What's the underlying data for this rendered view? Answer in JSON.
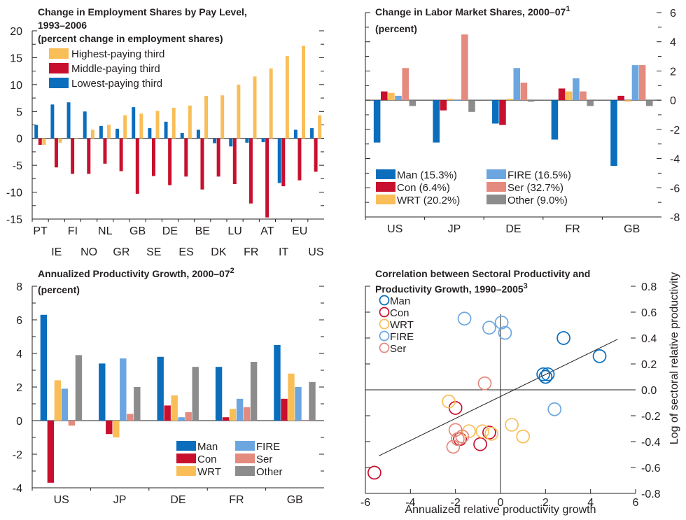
{
  "colors": {
    "high": "#F9BE58",
    "mid": "#C8102E",
    "low": "#0A6EBD",
    "Man": "#0A6EBD",
    "Con": "#C8102E",
    "WRT": "#F9BE58",
    "FIRE": "#6CA6E0",
    "Ser": "#E48A7E",
    "Other": "#8C8C8C"
  },
  "chart_data": [
    {
      "type": "bar",
      "title": "Change in Employment Shares by Pay Level, 1993–2006",
      "title_lines": [
        "Change in Employment Shares by Pay Level,",
        "1993–2006",
        "(percent change in employment shares)"
      ],
      "ylim": [
        -15,
        20
      ],
      "yticks": [
        "20",
        "15",
        "10",
        "5",
        "0",
        "-5",
        "-10",
        "-15"
      ],
      "ytick_values": [
        20,
        15,
        10,
        5,
        0,
        -5,
        -10,
        -15
      ],
      "categories": [
        "PT",
        "IE",
        "FI",
        "NO",
        "NL",
        "GR",
        "GB",
        "SE",
        "DE",
        "ES",
        "BE",
        "DK",
        "LU",
        "FR",
        "AT",
        "IT",
        "EU",
        "US"
      ],
      "series": [
        {
          "name": "Lowest-paying third",
          "key": "low",
          "values": [
            2.5,
            6.3,
            6.7,
            5.0,
            2.3,
            1.8,
            5.8,
            1.9,
            3.1,
            1.0,
            1.6,
            -0.9,
            -1.5,
            -0.8,
            -0.7,
            -8.3,
            1.6,
            1.9
          ]
        },
        {
          "name": "Middle-paying third",
          "key": "mid",
          "values": [
            -1.2,
            -5.4,
            -6.6,
            -6.6,
            -4.7,
            -6.1,
            -10.3,
            -7.0,
            -8.7,
            -7.1,
            -9.5,
            -7.1,
            -8.5,
            -12.1,
            -14.7,
            -8.9,
            -7.8,
            -6.2
          ]
        },
        {
          "name": "Highest-paying third",
          "key": "high",
          "values": [
            -1.2,
            -0.8,
            -0.1,
            1.6,
            2.5,
            4.3,
            4.6,
            5.1,
            5.7,
            6.1,
            7.9,
            8.0,
            10.0,
            11.5,
            13.0,
            15.3,
            17.2,
            4.3
          ]
        }
      ],
      "legend_order": [
        "high",
        "mid",
        "low"
      ],
      "legend_labels": [
        "Highest-paying third",
        "Middle-paying third",
        "Lowest-paying third"
      ]
    },
    {
      "type": "bar",
      "title": "Change in Labor Market Shares, 2000–07",
      "title_lines": [
        "Change in Labor Market Shares, 2000–07",
        "(percent)"
      ],
      "title_sup": "1",
      "ylim": [
        -8,
        6
      ],
      "yticks": [
        "6",
        "4",
        "2",
        "0",
        "-2",
        "-4",
        "-6",
        "-8"
      ],
      "ytick_values": [
        6,
        4,
        2,
        0,
        -2,
        -4,
        -6,
        -8
      ],
      "categories": [
        "US",
        "JP",
        "DE",
        "FR",
        "GB"
      ],
      "series": [
        {
          "name": "Man (15.3%)",
          "key": "Man",
          "values": [
            -2.9,
            -2.9,
            -1.6,
            -2.7,
            -4.5
          ]
        },
        {
          "name": "Con (6.4%)",
          "key": "Con",
          "values": [
            0.6,
            -0.7,
            -1.7,
            0.8,
            0.3
          ]
        },
        {
          "name": "WRT (20.2%)",
          "key": "WRT",
          "values": [
            0.5,
            0.1,
            0.1,
            0.6,
            -0.1
          ]
        },
        {
          "name": "FIRE (16.5%)",
          "key": "FIRE",
          "values": [
            0.3,
            0.0,
            2.2,
            1.5,
            2.4
          ]
        },
        {
          "name": "Ser (32.7%)",
          "key": "Ser",
          "values": [
            2.2,
            4.5,
            1.2,
            0.6,
            2.4
          ]
        },
        {
          "name": "Other (9.0%)",
          "key": "Other",
          "values": [
            -0.4,
            -0.8,
            -0.1,
            -0.4,
            -0.4
          ]
        }
      ],
      "legend_rows": [
        [
          "Man (15.3%)",
          "FIRE (16.5%)"
        ],
        [
          "Con (6.4%)",
          "Ser (32.7%)"
        ],
        [
          "WRT (20.2%)",
          "Other (9.0%)"
        ]
      ]
    },
    {
      "type": "bar",
      "title": "Annualized Productivity Growth, 2000–07",
      "title_lines": [
        "Annualized Productivity Growth, 2000–07",
        "(percent)"
      ],
      "title_sup": "2",
      "ylim": [
        -4,
        8
      ],
      "yticks": [
        "8",
        "6",
        "4",
        "2",
        "0",
        "-2",
        "-4"
      ],
      "ytick_values": [
        8,
        6,
        4,
        2,
        0,
        -2,
        -4
      ],
      "categories": [
        "US",
        "JP",
        "DE",
        "FR",
        "GB"
      ],
      "series": [
        {
          "name": "Man",
          "key": "Man",
          "values": [
            6.3,
            3.4,
            3.8,
            3.2,
            4.5
          ]
        },
        {
          "name": "Con",
          "key": "Con",
          "values": [
            -3.7,
            -0.8,
            0.9,
            0.2,
            1.3
          ]
        },
        {
          "name": "WRT",
          "key": "WRT",
          "values": [
            2.4,
            -1.0,
            1.5,
            0.7,
            2.8
          ]
        },
        {
          "name": "FIRE",
          "key": "FIRE",
          "values": [
            1.9,
            3.7,
            0.2,
            1.3,
            2.0
          ]
        },
        {
          "name": "Ser",
          "key": "Ser",
          "values": [
            -0.3,
            0.4,
            0.5,
            0.8,
            0.0
          ]
        },
        {
          "name": "Other",
          "key": "Other",
          "values": [
            3.9,
            2.0,
            3.2,
            3.5,
            2.3
          ]
        }
      ],
      "legend_rows": [
        [
          "Man",
          "FIRE"
        ],
        [
          "Con",
          "Ser"
        ],
        [
          "WRT",
          "Other"
        ]
      ]
    },
    {
      "type": "scatter",
      "title": "Correlation between Sectoral Productivity and Productivity Growth, 1990–2005",
      "title_lines": [
        "Correlation between Sectoral Productivity and",
        "Productivity Growth, 1990–2005"
      ],
      "title_sup": "3",
      "xlabel": "Annualized relative productivity growth",
      "ylabel": "Log of sectoral relative productivity",
      "xlim": [
        -6,
        6
      ],
      "ylim": [
        -0.8,
        0.8
      ],
      "xticks": [
        "-6",
        "-4",
        "-2",
        "0",
        "2",
        "4",
        "6"
      ],
      "xtick_values": [
        -6,
        -4,
        -2,
        0,
        2,
        4,
        6
      ],
      "yticks": [
        "0.8",
        "0.6",
        "0.4",
        "0.2",
        "0.0",
        "-0.2",
        "-0.4",
        "-0.6",
        "-0.8"
      ],
      "ytick_values": [
        0.8,
        0.6,
        0.4,
        0.2,
        0.0,
        -0.2,
        -0.4,
        -0.6,
        -0.8
      ],
      "fit_line": {
        "x": [
          -5.4,
          5.2
        ],
        "y": [
          -0.51,
          0.39
        ]
      },
      "series": [
        {
          "name": "Man",
          "key": "Man",
          "points": [
            [
              2.8,
              0.4
            ],
            [
              4.4,
              0.26
            ],
            [
              1.9,
              0.12
            ],
            [
              2.0,
              0.1
            ],
            [
              2.1,
              0.12
            ]
          ]
        },
        {
          "name": "Con",
          "key": "Con",
          "points": [
            [
              -5.6,
              -0.64
            ],
            [
              -2.0,
              -0.14
            ],
            [
              -1.8,
              -0.38
            ],
            [
              -0.9,
              -0.42
            ],
            [
              -0.5,
              -0.33
            ]
          ]
        },
        {
          "name": "WRT",
          "key": "WRT",
          "points": [
            [
              -2.3,
              -0.09
            ],
            [
              -1.4,
              -0.32
            ],
            [
              -0.8,
              -0.32
            ],
            [
              -0.4,
              -0.34
            ],
            [
              0.5,
              -0.27
            ],
            [
              1.0,
              -0.36
            ]
          ]
        },
        {
          "name": "FIRE",
          "key": "FIRE",
          "points": [
            [
              -1.6,
              0.55
            ],
            [
              -0.5,
              0.48
            ],
            [
              0.05,
              0.52
            ],
            [
              0.2,
              0.44
            ],
            [
              2.4,
              -0.15
            ]
          ]
        },
        {
          "name": "Ser",
          "key": "Ser",
          "points": [
            [
              -0.7,
              0.05
            ],
            [
              -2.0,
              -0.31
            ],
            [
              -2.1,
              -0.44
            ],
            [
              -1.9,
              -0.38
            ],
            [
              -1.7,
              -0.36
            ]
          ]
        }
      ]
    }
  ]
}
